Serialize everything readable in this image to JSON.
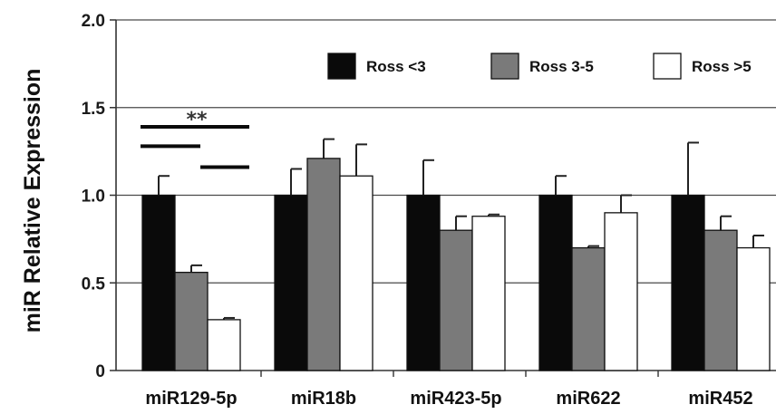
{
  "chart_data": {
    "type": "bar",
    "title": "",
    "xlabel": "",
    "ylabel": "miR Relative Expression",
    "ylim": [
      0,
      2.0
    ],
    "yticks": [
      0,
      0.5,
      1.0,
      1.5,
      2.0
    ],
    "ytick_labels": [
      "0",
      "0.5",
      "1.0",
      "1.5",
      "2.0"
    ],
    "grid": "horizontal",
    "legend_position": "top-right",
    "categories": [
      "miR129-5p",
      "miR18b",
      "miR423-5p",
      "miR622",
      "miR452"
    ],
    "series": [
      {
        "name": "Ross <3",
        "color": "#0a0a0a",
        "values": [
          1.0,
          1.0,
          1.0,
          1.0,
          1.0
        ],
        "errors": [
          0.11,
          0.15,
          0.2,
          0.11,
          0.3
        ]
      },
      {
        "name": "Ross 3-5",
        "color": "#7a7a7a",
        "values": [
          0.56,
          1.21,
          0.8,
          0.7,
          0.8
        ],
        "errors": [
          0.04,
          0.11,
          0.08,
          0.01,
          0.08
        ]
      },
      {
        "name": "Ross >5",
        "color": "#ffffff",
        "values": [
          0.29,
          1.11,
          0.88,
          0.9,
          0.7
        ],
        "errors": [
          0.01,
          0.18,
          0.01,
          0.1,
          0.07
        ]
      }
    ],
    "annotations": [
      {
        "text": "**",
        "category": "miR129-5p"
      }
    ]
  }
}
